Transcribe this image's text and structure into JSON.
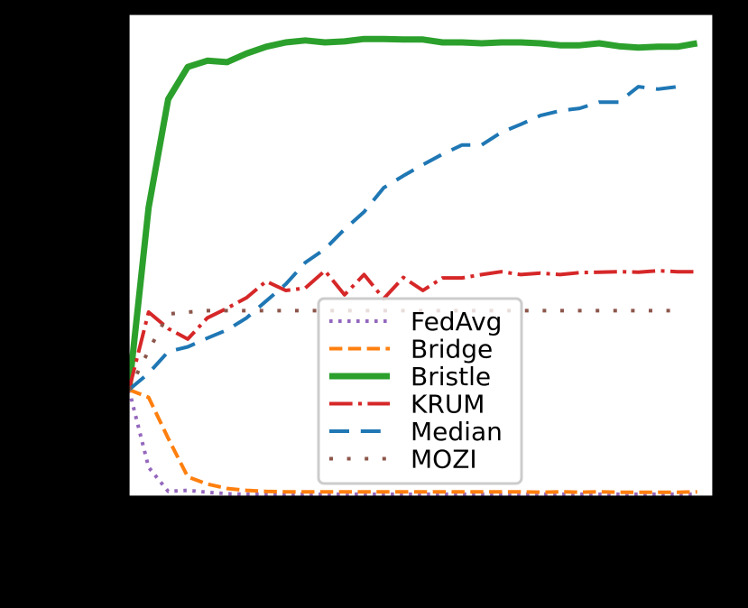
{
  "chart_data": {
    "type": "line",
    "title": "",
    "xlabel": "",
    "ylabel": "",
    "x_tick_labels": [],
    "y_tick_labels": [],
    "x": [
      0,
      1,
      2,
      3,
      4,
      5,
      6,
      7,
      8,
      9,
      10,
      11,
      12,
      13,
      14,
      15,
      16,
      17,
      18,
      19,
      20,
      21,
      22,
      23,
      24,
      25,
      26,
      27,
      28,
      29
    ],
    "xlim": [
      0,
      29.8
    ],
    "ylim": [
      0,
      1
    ],
    "grid": false,
    "legend_position": "lower center",
    "background": "#000000",
    "plot_background": "#ffffff",
    "series": [
      {
        "name": "FedAvg",
        "color": "#9467bd",
        "style": "dotted",
        "width": 4,
        "values": [
          0.221,
          0.06,
          0.01,
          0.012,
          0.008,
          0.005,
          0.004,
          0.004,
          0.004,
          0.004,
          0.004,
          0.004,
          0.004,
          0.004,
          0.004,
          0.004,
          0.004,
          0.004,
          0.004,
          0.004,
          0.004,
          0.004,
          0.004,
          0.004,
          0.004,
          0.004,
          0.004,
          0.004,
          0.004,
          0.004
        ]
      },
      {
        "name": "Bridge",
        "color": "#ff7f0e",
        "style": "dashed",
        "width": 4,
        "values": [
          0.221,
          0.205,
          0.12,
          0.04,
          0.025,
          0.016,
          0.012,
          0.01,
          0.009,
          0.009,
          0.009,
          0.009,
          0.009,
          0.009,
          0.009,
          0.009,
          0.009,
          0.009,
          0.009,
          0.009,
          0.009,
          0.008,
          0.009,
          0.008,
          0.009,
          0.008,
          0.008,
          0.008,
          0.008,
          0.009
        ]
      },
      {
        "name": "Bristle",
        "color": "#2ca02c",
        "style": "solid",
        "width": 7,
        "values": [
          0.221,
          0.599,
          0.824,
          0.891,
          0.904,
          0.901,
          0.919,
          0.933,
          0.942,
          0.946,
          0.942,
          0.944,
          0.949,
          0.949,
          0.948,
          0.948,
          0.942,
          0.942,
          0.94,
          0.942,
          0.942,
          0.94,
          0.936,
          0.936,
          0.94,
          0.934,
          0.931,
          0.933,
          0.933,
          0.94
        ]
      },
      {
        "name": "KRUM",
        "color": "#d62728",
        "style": "dashdot",
        "width": 4,
        "values": [
          0.221,
          0.382,
          0.348,
          0.326,
          0.37,
          0.39,
          0.412,
          0.446,
          0.427,
          0.432,
          0.468,
          0.418,
          0.46,
          0.41,
          0.454,
          0.427,
          0.453,
          0.453,
          0.46,
          0.466,
          0.46,
          0.463,
          0.46,
          0.464,
          0.465,
          0.466,
          0.465,
          0.468,
          0.466,
          0.466
        ]
      },
      {
        "name": "Median",
        "color": "#1f77b4",
        "style": "dashed-long",
        "width": 4,
        "values": [
          0.221,
          0.255,
          0.3,
          0.31,
          0.328,
          0.345,
          0.37,
          0.405,
          0.44,
          0.485,
          0.513,
          0.554,
          0.59,
          0.64,
          0.665,
          0.688,
          0.71,
          0.729,
          0.729,
          0.755,
          0.772,
          0.79,
          0.8,
          0.805,
          0.818,
          0.818,
          0.85,
          0.845,
          0.85,
          null
        ]
      },
      {
        "name": "MOZI",
        "color": "#8c564b",
        "style": "dotted-sparse",
        "width": 4,
        "values": [
          0.221,
          0.302,
          0.378,
          0.382,
          0.385,
          0.385,
          0.385,
          0.385,
          0.385,
          0.385,
          0.385,
          0.385,
          0.385,
          0.385,
          0.385,
          0.385,
          0.385,
          0.385,
          0.385,
          0.385,
          0.385,
          0.385,
          0.385,
          0.385,
          0.385,
          0.385,
          0.385,
          0.385,
          0.385,
          null
        ]
      }
    ]
  }
}
